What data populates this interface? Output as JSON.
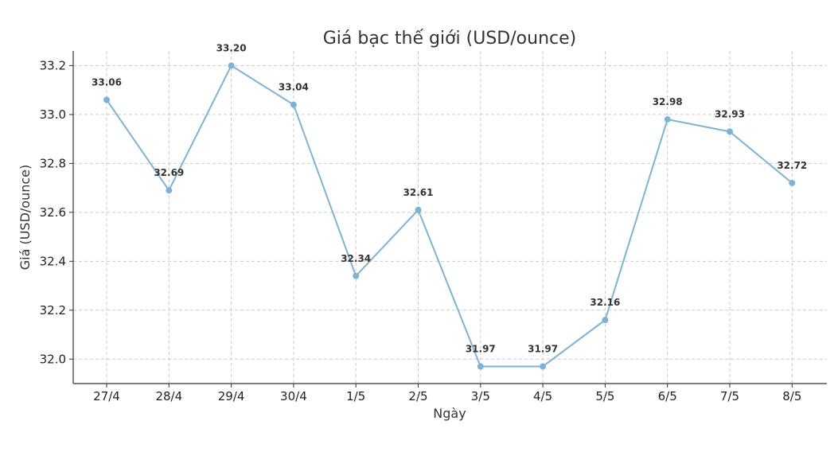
{
  "chart_data": {
    "type": "line",
    "title": "Giá bạc thế giới (USD/ounce)",
    "xlabel": "Ngày",
    "ylabel": "Giá (USD/ounce)",
    "categories": [
      "27/4",
      "28/4",
      "29/4",
      "30/4",
      "1/5",
      "2/5",
      "3/5",
      "4/5",
      "5/5",
      "6/5",
      "7/5",
      "8/5"
    ],
    "values": [
      33.06,
      32.69,
      33.2,
      33.04,
      32.34,
      32.61,
      31.97,
      31.97,
      32.16,
      32.98,
      32.93,
      32.72
    ],
    "value_labels": [
      "33.06",
      "32.69",
      "33.20",
      "33.04",
      "32.34",
      "32.61",
      "31.97",
      "31.97",
      "32.16",
      "32.98",
      "32.93",
      "32.72"
    ],
    "yticks": [
      32.0,
      32.2,
      32.4,
      32.6,
      32.8,
      33.0,
      33.2
    ],
    "ytick_labels": [
      "32.0",
      "32.2",
      "32.4",
      "32.6",
      "32.8",
      "33.0",
      "33.2"
    ],
    "ylim": [
      31.9,
      33.26
    ],
    "grid": true,
    "line_color": "#7fb3d5",
    "legend": "none"
  }
}
